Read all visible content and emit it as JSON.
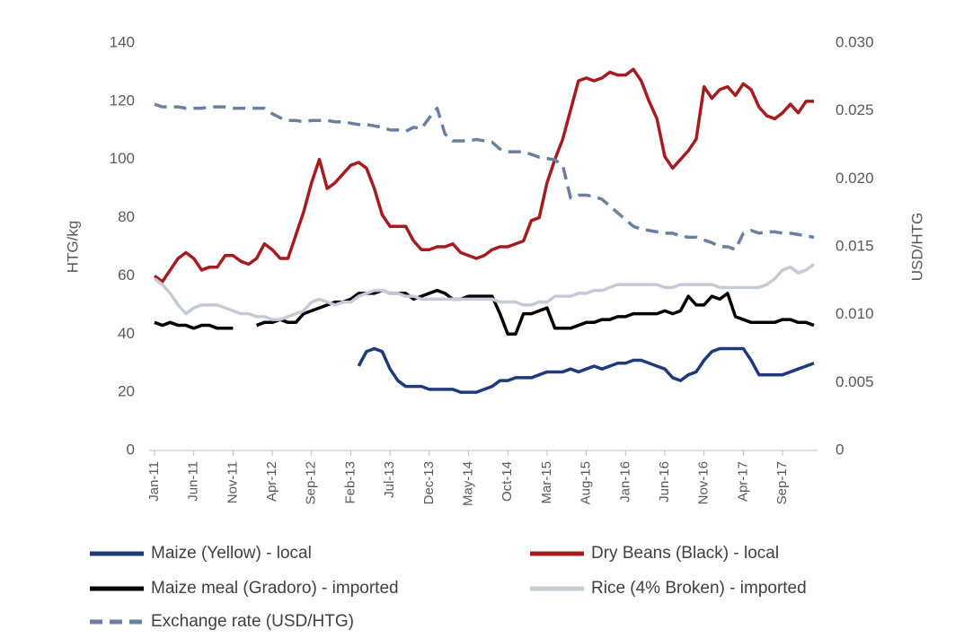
{
  "chart_data": {
    "type": "line",
    "ylabel": "HTG/kg",
    "y2label": "USD/HTG",
    "categories": [
      "Jan-11",
      null,
      null,
      null,
      null,
      "Jun-11",
      null,
      null,
      null,
      null,
      "Nov-11",
      null,
      null,
      null,
      null,
      "Apr-12",
      null,
      null,
      null,
      null,
      "Sep-12",
      null,
      null,
      null,
      null,
      "Feb-13",
      null,
      null,
      null,
      null,
      "Jul-13",
      null,
      null,
      null,
      null,
      "Dec-13",
      null,
      null,
      null,
      null,
      "May-14",
      null,
      null,
      null,
      null,
      "Oct-14",
      null,
      null,
      null,
      null,
      "Mar-15",
      null,
      null,
      null,
      null,
      "Aug-15",
      null,
      null,
      null,
      null,
      "Jan-16",
      null,
      null,
      null,
      null,
      "Jun-16",
      null,
      null,
      null,
      null,
      "Nov-16",
      null,
      null,
      null,
      null,
      "Apr-17",
      null,
      null,
      null,
      null,
      "Sep-17",
      null,
      null,
      null,
      null
    ],
    "ylim": [
      0,
      140
    ],
    "yticks": [
      0,
      20,
      40,
      60,
      80,
      100,
      120,
      140
    ],
    "y2lim": [
      0,
      0.03
    ],
    "y2ticks": [
      0,
      0.005,
      {
        "value": 0.01,
        "label": "0.010"
      },
      0.015,
      {
        "value": 0.02,
        "label": "0.020"
      },
      0.025,
      {
        "value": 0.03,
        "label": "0.030"
      }
    ],
    "grid": false,
    "legend": "bottom",
    "series": [
      {
        "name": "Maize (Yellow) - local",
        "color": "#1f3a7a",
        "values": [
          null,
          null,
          null,
          null,
          null,
          null,
          null,
          null,
          null,
          null,
          null,
          null,
          null,
          null,
          null,
          null,
          null,
          null,
          null,
          null,
          null,
          null,
          null,
          null,
          null,
          null,
          29,
          34,
          35,
          34,
          28,
          24,
          22,
          22,
          22,
          21,
          21,
          21,
          21,
          20,
          20,
          20,
          21,
          22,
          24,
          24,
          25,
          25,
          25,
          26,
          27,
          27,
          27,
          28,
          27,
          28,
          29,
          28,
          29,
          30,
          30,
          31,
          31,
          30,
          29,
          28,
          25,
          24,
          26,
          27,
          31,
          34,
          35,
          35,
          35,
          35,
          31,
          26,
          26,
          26,
          26,
          27,
          28,
          29,
          30
        ]
      },
      {
        "name": "Dry Beans (Black) - local",
        "color": "#a51c20",
        "values": [
          60,
          58,
          62,
          66,
          68,
          66,
          62,
          63,
          63,
          67,
          67,
          65,
          64,
          66,
          71,
          69,
          66,
          66,
          74,
          82,
          92,
          100,
          90,
          92,
          95,
          98,
          99,
          97,
          90,
          81,
          77,
          77,
          77,
          72,
          69,
          69,
          70,
          70,
          71,
          68,
          67,
          66,
          67,
          69,
          70,
          70,
          71,
          72,
          79,
          80,
          92,
          100,
          107,
          117,
          127,
          128,
          127,
          128,
          130,
          129,
          129,
          131,
          127,
          120,
          114,
          101,
          97,
          100,
          103,
          107,
          125,
          121,
          124,
          125,
          122,
          126,
          124,
          118,
          115,
          114,
          116,
          119,
          116,
          120,
          120
        ]
      },
      {
        "name": "Maize meal (Gradoro) - imported",
        "color": "#000000",
        "values": [
          44,
          43,
          44,
          43,
          43,
          42,
          43,
          43,
          42,
          42,
          42,
          null,
          null,
          43,
          44,
          44,
          45,
          44,
          44,
          47,
          48,
          49,
          50,
          51,
          51,
          52,
          54,
          54,
          54,
          55,
          54,
          54,
          54,
          52,
          53,
          54,
          55,
          54,
          52,
          52,
          53,
          53,
          53,
          53,
          47,
          40,
          40,
          47,
          47,
          48,
          49,
          42,
          42,
          42,
          43,
          44,
          44,
          45,
          45,
          46,
          46,
          47,
          47,
          47,
          47,
          48,
          47,
          48,
          53,
          50,
          50,
          53,
          52,
          54,
          46,
          45,
          44,
          44,
          44,
          44,
          45,
          45,
          44,
          44,
          43
        ]
      },
      {
        "name": "Rice (4% Broken) - imported",
        "color": "#c5cbd6",
        "values": [
          59,
          57,
          54,
          50,
          47,
          49,
          50,
          50,
          50,
          49,
          48,
          47,
          47,
          46,
          46,
          45,
          45,
          46,
          47,
          48,
          51,
          52,
          51,
          50,
          51,
          51,
          53,
          54,
          55,
          55,
          54,
          54,
          53,
          53,
          52,
          52,
          52,
          52,
          52,
          52,
          52,
          52,
          52,
          52,
          51,
          51,
          51,
          50,
          50,
          51,
          51,
          53,
          53,
          53,
          54,
          54,
          55,
          55,
          56,
          57,
          57,
          57,
          57,
          57,
          57,
          56,
          56,
          57,
          57,
          57,
          57,
          57,
          56,
          56,
          56,
          56,
          56,
          56,
          57,
          59,
          62,
          63,
          61,
          62,
          64
        ]
      },
      {
        "name": "Exchange rate (USD/HTG)",
        "color": "#6b7fa0",
        "dash": "dashed",
        "axis": "y2",
        "values": [
          0.0255,
          0.0253,
          0.0253,
          0.0253,
          0.0252,
          0.0252,
          0.0252,
          0.0253,
          0.0253,
          0.0253,
          0.0252,
          0.0252,
          0.0252,
          0.0252,
          0.0252,
          0.0248,
          0.0245,
          0.0243,
          0.0243,
          0.0242,
          0.0243,
          0.0243,
          0.0243,
          0.0242,
          0.0242,
          0.0241,
          0.024,
          0.024,
          0.0239,
          0.0238,
          0.0236,
          0.0236,
          0.0235,
          0.0238,
          0.0237,
          0.0245,
          0.0252,
          0.0233,
          0.0228,
          0.0228,
          0.0228,
          0.0229,
          0.0228,
          0.0227,
          0.0222,
          0.022,
          0.022,
          0.022,
          0.0218,
          0.0216,
          0.0215,
          0.0214,
          0.021,
          0.0186,
          0.0188,
          0.0188,
          0.0187,
          0.0185,
          0.018,
          0.0175,
          0.017,
          0.0165,
          0.0163,
          0.0162,
          0.0161,
          0.016,
          0.016,
          0.0158,
          0.0157,
          0.0157,
          0.0155,
          0.0153,
          0.015,
          0.015,
          0.0148,
          0.016,
          0.0162,
          0.016,
          0.0161,
          0.0161,
          0.016,
          0.016,
          0.0159,
          0.0158,
          0.0157
        ]
      }
    ]
  }
}
